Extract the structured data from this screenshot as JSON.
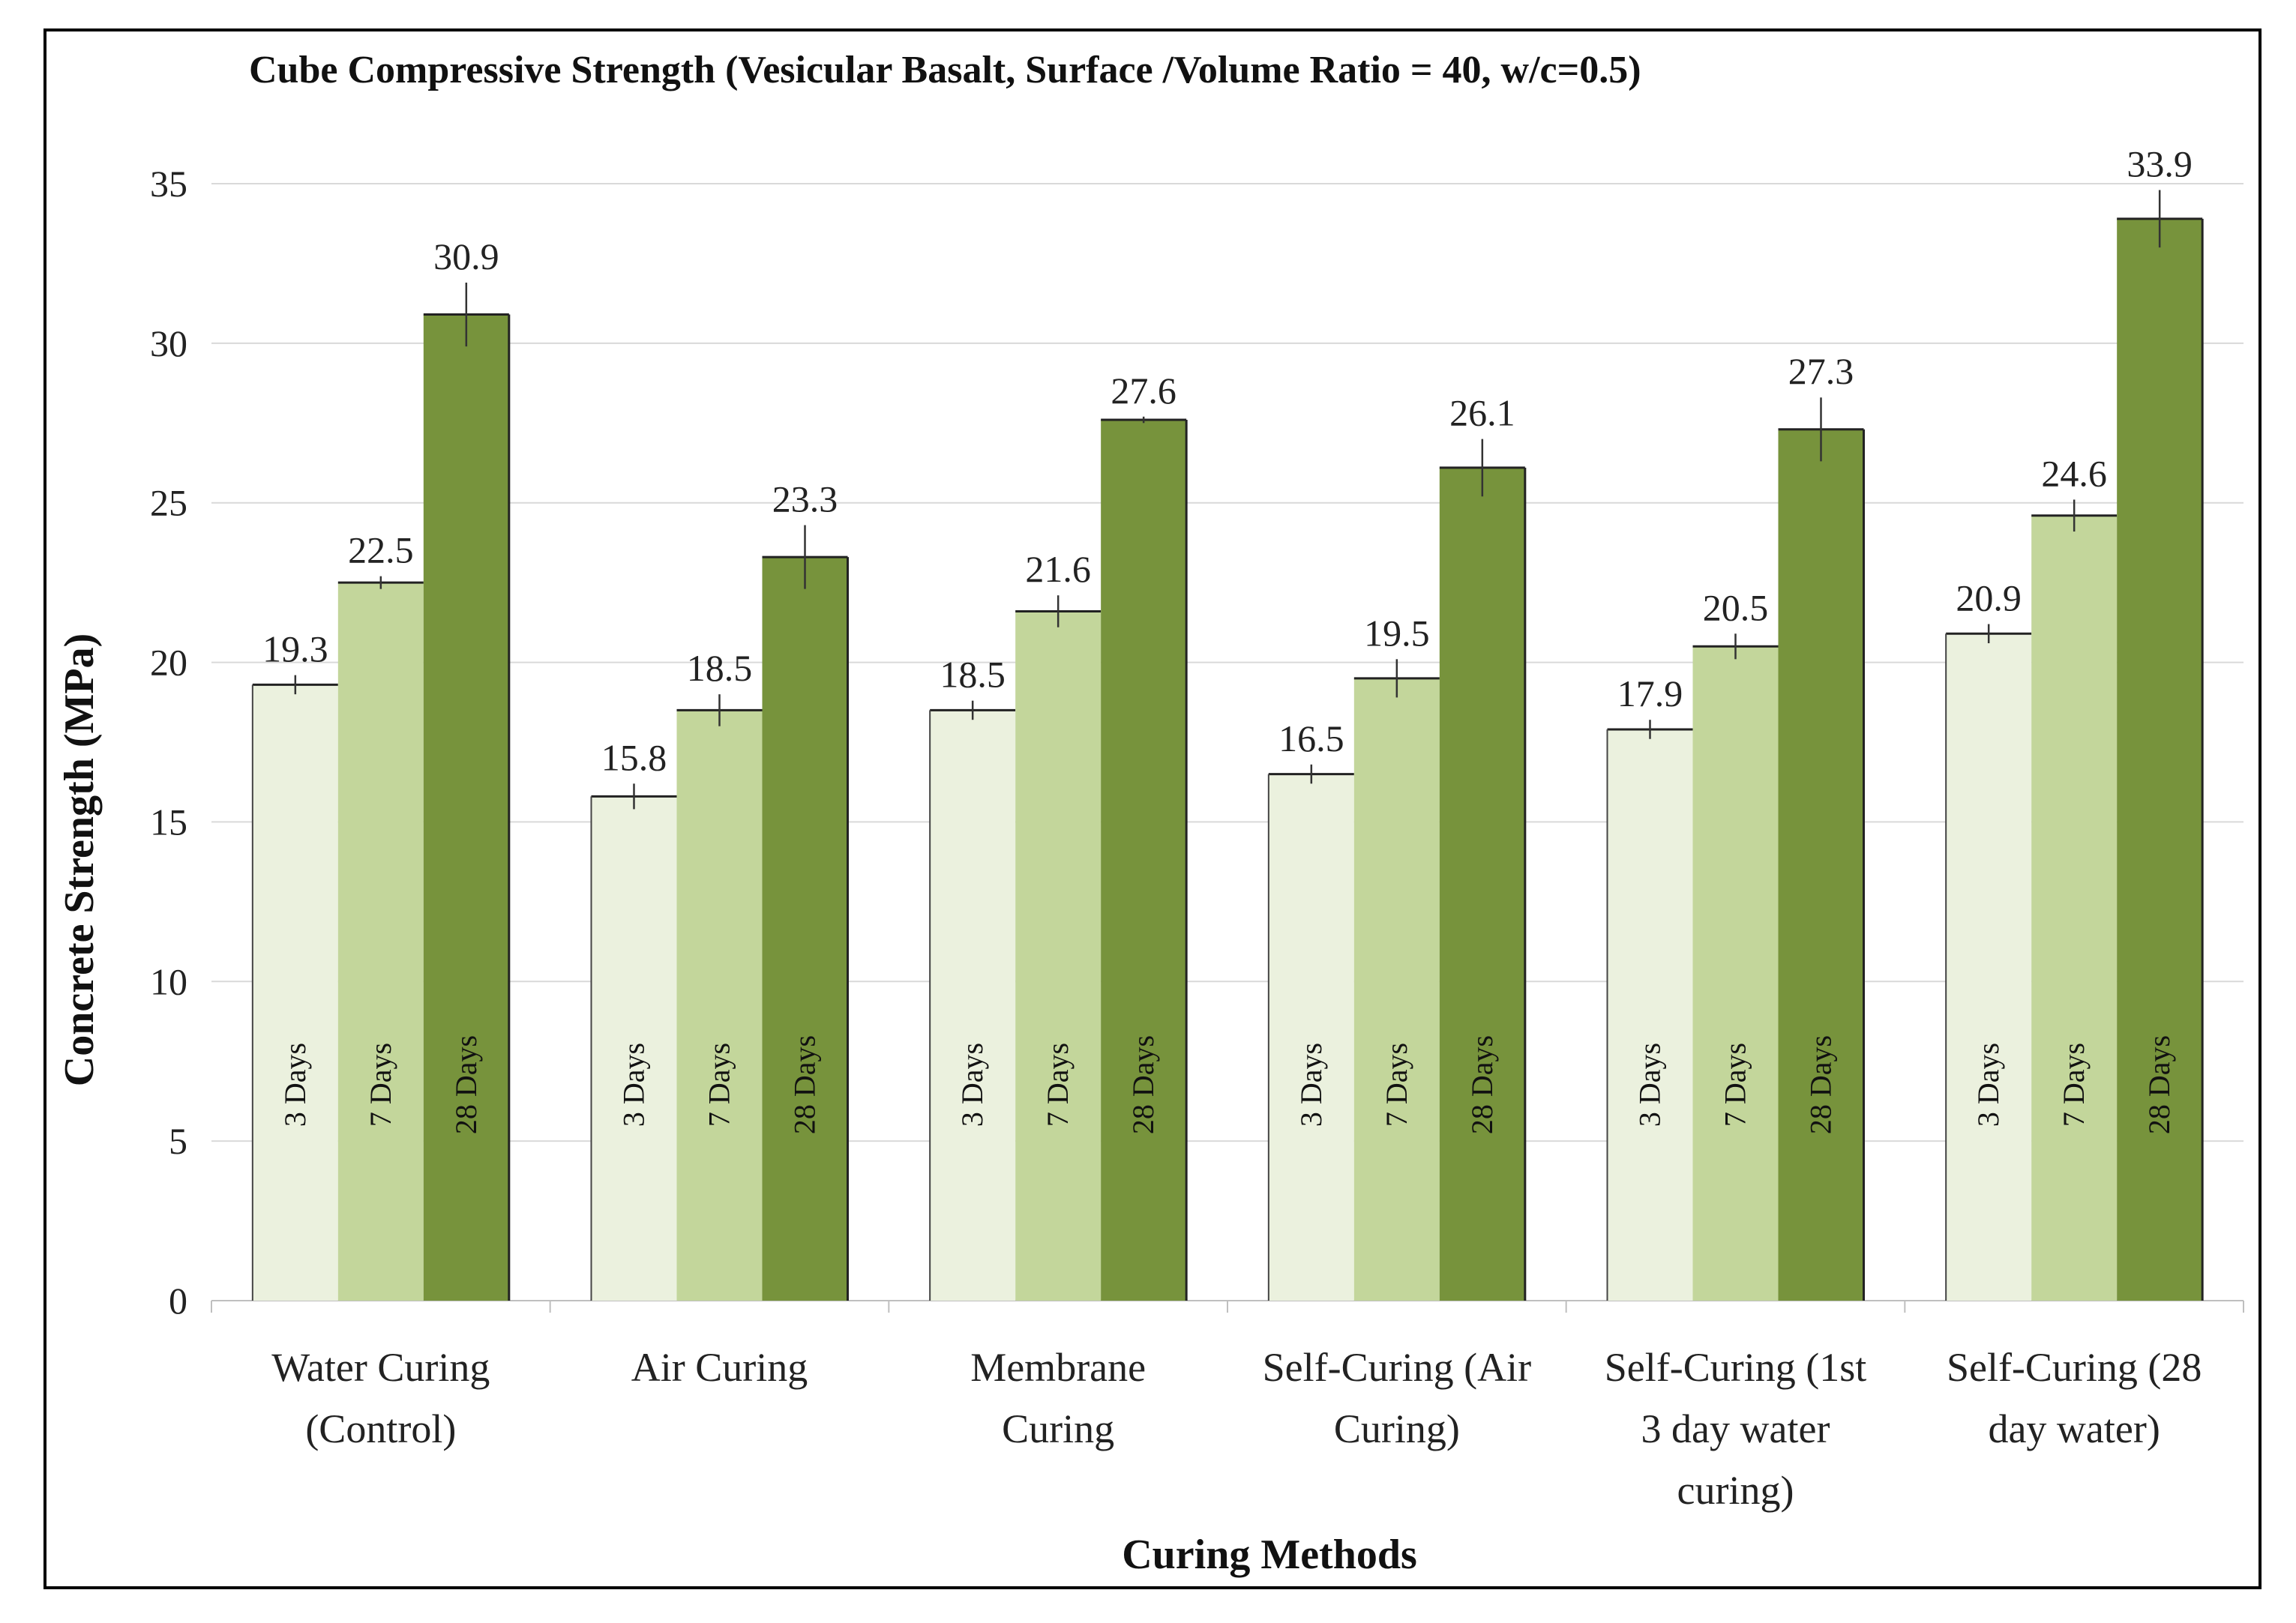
{
  "chart_data": {
    "type": "bar",
    "title": "Cube Compressive Strength (Vesicular Basalt, Surface /Volume Ratio = 40, w/c=0.5)",
    "xlabel": "Curing Methods",
    "ylabel": "Concrete Strength (MPa)",
    "ylim": [
      0,
      35
    ],
    "yticks": [
      0,
      5,
      10,
      15,
      20,
      25,
      30,
      35
    ],
    "grid": true,
    "categories": [
      [
        "Water Curing",
        "(Control)"
      ],
      [
        "Air Curing"
      ],
      [
        "Membrane",
        "Curing"
      ],
      [
        "Self-Curing (Air",
        "Curing)"
      ],
      [
        "Self-Curing (1st",
        "3 day water",
        "curing)"
      ],
      [
        "Self-Curing (28",
        "day water)"
      ]
    ],
    "series": [
      {
        "name": "3 Days",
        "color": "#ebf1de",
        "values": [
          19.3,
          15.8,
          18.5,
          16.5,
          17.9,
          20.9
        ]
      },
      {
        "name": "7 Days",
        "color": "#c3d69b",
        "values": [
          22.5,
          18.5,
          21.6,
          19.5,
          20.5,
          24.6
        ]
      },
      {
        "name": "28 Days",
        "color": "#77933c",
        "values": [
          30.9,
          23.3,
          27.6,
          26.1,
          27.3,
          33.9
        ]
      }
    ],
    "data_labels": [
      [
        "19.3",
        "15.8",
        "18.5",
        "16.5",
        "17.9",
        "20.9"
      ],
      [
        "22.5",
        "18.5",
        "21.6",
        "19.5",
        "20.5",
        "24.6"
      ],
      [
        "30.9",
        "23.3",
        "27.6",
        "26.1",
        "27.3",
        "33.9"
      ]
    ],
    "error_bars": [
      [
        0.3,
        0.4,
        0.3,
        0.3,
        0.3,
        0.3
      ],
      [
        0.2,
        0.5,
        0.5,
        0.6,
        0.4,
        0.5
      ],
      [
        1.0,
        1.0,
        0.1,
        0.9,
        1.0,
        0.9
      ]
    ]
  }
}
